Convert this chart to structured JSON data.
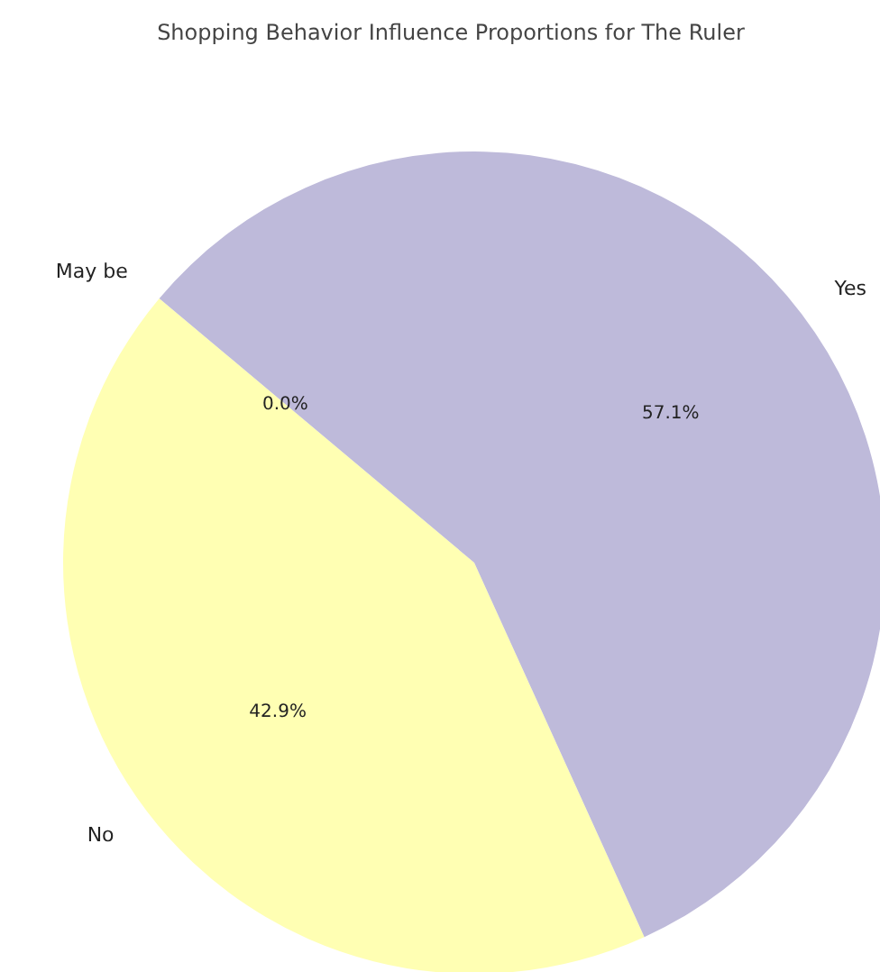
{
  "chart_data": {
    "type": "pie",
    "title": "Shopping Behavior Influence Proportions for The Ruler",
    "categories": [
      "May be",
      "No",
      "Yes"
    ],
    "values": [
      0,
      42.9,
      57.1
    ],
    "colors": [
      "#8dd3c7",
      "#ffffb3",
      "#bebada"
    ],
    "value_labels": [
      "0.0%",
      "42.9%",
      "57.1%"
    ]
  }
}
